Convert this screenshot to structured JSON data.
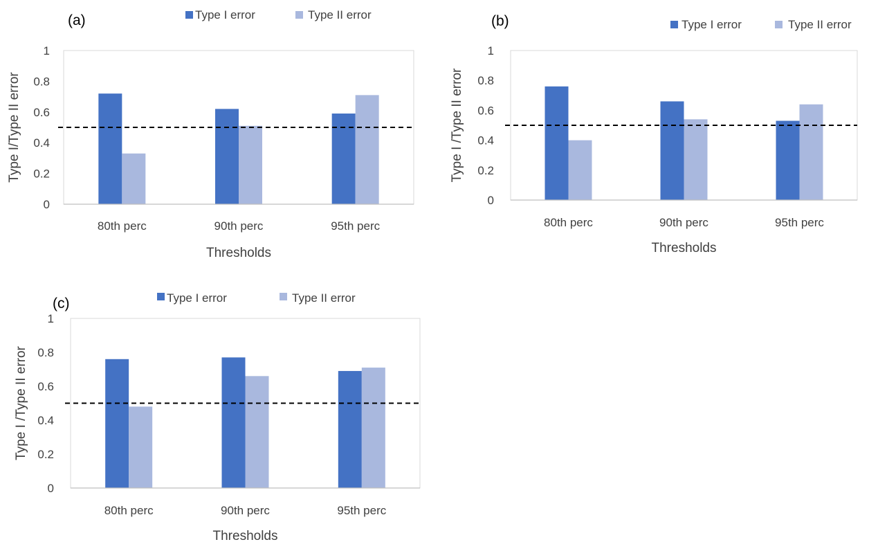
{
  "colors": {
    "type1": "#4472C4",
    "type2": "#A9B8DE",
    "axis": "#BFBFBF",
    "text": "#404040",
    "threshold_line": "#000000"
  },
  "chart_data": [
    {
      "type": "bar",
      "panel_label": "(a)",
      "categories": [
        "80th perc",
        "90th perc",
        "95th perc"
      ],
      "series": [
        {
          "name": "Type I error",
          "values": [
            0.72,
            0.62,
            0.59
          ]
        },
        {
          "name": "Type II error",
          "values": [
            0.33,
            0.51,
            0.71
          ]
        }
      ],
      "xlabel": "Thresholds",
      "ylabel": "Type I/Type II error",
      "ylim": [
        0,
        1
      ],
      "yticks": [
        "0",
        "0.2",
        "0.4",
        "0.6",
        "0.8",
        "1"
      ],
      "reference_line": 0.5,
      "legend_position": "top"
    },
    {
      "type": "bar",
      "panel_label": "(b)",
      "categories": [
        "80th perc",
        "90th perc",
        "95th perc"
      ],
      "series": [
        {
          "name": "Type I error",
          "values": [
            0.76,
            0.66,
            0.53
          ]
        },
        {
          "name": "Type II error",
          "values": [
            0.4,
            0.54,
            0.64
          ]
        }
      ],
      "xlabel": "Thresholds",
      "ylabel": "Type I /Type II error",
      "ylim": [
        0,
        1
      ],
      "yticks": [
        "0",
        "0.2",
        "0.4",
        "0.6",
        "0.8",
        "1"
      ],
      "reference_line": 0.5,
      "legend_position": "top-right"
    },
    {
      "type": "bar",
      "panel_label": "(c)",
      "categories": [
        "80th perc",
        "90th perc",
        "95th perc"
      ],
      "series": [
        {
          "name": "Type I error",
          "values": [
            0.76,
            0.77,
            0.69
          ]
        },
        {
          "name": "Type II error",
          "values": [
            0.48,
            0.66,
            0.71
          ]
        }
      ],
      "xlabel": "Thresholds",
      "ylabel": "Type I /Type II error",
      "ylim": [
        0,
        1
      ],
      "yticks": [
        "0",
        "0.2",
        "0.4",
        "0.6",
        "0.8",
        "1"
      ],
      "reference_line": 0.5,
      "legend_position": "top"
    }
  ]
}
